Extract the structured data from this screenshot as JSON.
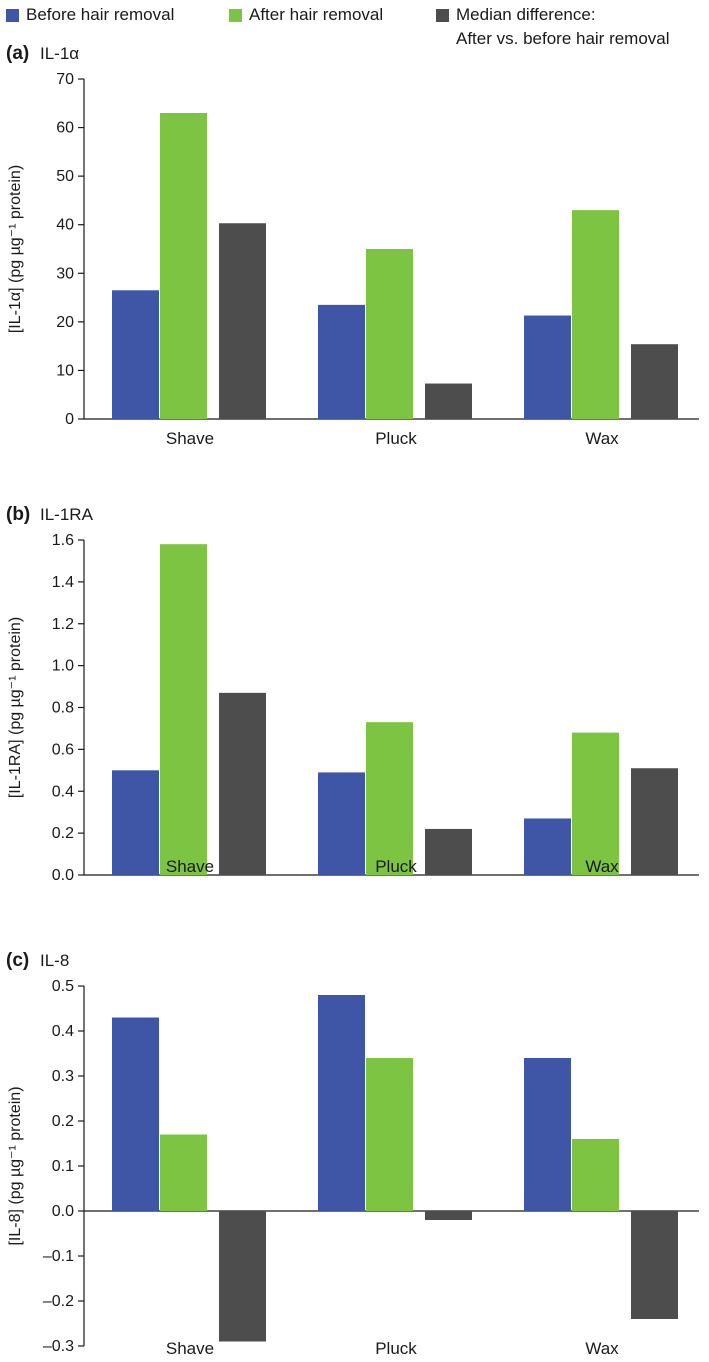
{
  "legend": {
    "items": [
      {
        "name": "before",
        "label": "Before hair removal",
        "color": "#3f55a6"
      },
      {
        "name": "after",
        "label": "After hair removal",
        "color": "#7dc443"
      },
      {
        "name": "median",
        "label_line1": "Median difference:",
        "label_line2": "After vs. before hair removal",
        "color": "#4d4d4d"
      }
    ]
  },
  "chart_data": [
    {
      "type": "bar",
      "panel_letter": "(a)",
      "title": "IL-1α",
      "ylabel": "[IL-1α] (pg µg⁻¹ protein)",
      "ylim": [
        0,
        70
      ],
      "yticks": [
        "0",
        "10",
        "20",
        "30",
        "40",
        "50",
        "60",
        "70"
      ],
      "ytick_values": [
        0,
        10,
        20,
        30,
        40,
        50,
        60,
        70
      ],
      "categories": [
        "Shave",
        "Pluck",
        "Wax"
      ],
      "series": [
        {
          "name": "Before hair removal",
          "color": "#3f55a6",
          "values": [
            26.5,
            23.5,
            21.3
          ]
        },
        {
          "name": "After hair removal",
          "color": "#7dc443",
          "values": [
            63,
            35,
            43
          ]
        },
        {
          "name": "Median difference: After vs. before hair removal",
          "color": "#4d4d4d",
          "values": [
            40.3,
            7.3,
            15.4
          ]
        }
      ]
    },
    {
      "type": "bar",
      "panel_letter": "(b)",
      "title": "IL-1RA",
      "ylabel": "[IL-1RA] (pg µg⁻¹ protein)",
      "ylim": [
        0,
        1.6
      ],
      "yticks": [
        "0.0",
        "0.2",
        "0.4",
        "0.6",
        "0.8",
        "1.0",
        "1.2",
        "1.4",
        "1.6"
      ],
      "ytick_values": [
        0,
        0.2,
        0.4,
        0.6,
        0.8,
        1.0,
        1.2,
        1.4,
        1.6
      ],
      "categories": [
        "Shave",
        "Pluck",
        "Wax"
      ],
      "series": [
        {
          "name": "Before hair removal",
          "color": "#3f55a6",
          "values": [
            0.5,
            0.49,
            0.27
          ]
        },
        {
          "name": "After hair removal",
          "color": "#7dc443",
          "values": [
            1.58,
            0.73,
            0.68
          ]
        },
        {
          "name": "Median difference: After vs. before hair removal",
          "color": "#4d4d4d",
          "values": [
            0.87,
            0.22,
            0.51
          ]
        }
      ]
    },
    {
      "type": "bar",
      "panel_letter": "(c)",
      "title": "IL-8",
      "ylabel": "[IL-8] (pg µg⁻¹ protein)",
      "ylim": [
        -0.3,
        0.5
      ],
      "yticks": [
        "–0.3",
        "–0.2",
        "–0.1",
        "0.0",
        "0.1",
        "0.2",
        "0.3",
        "0.4",
        "0.5"
      ],
      "ytick_values": [
        -0.3,
        -0.2,
        -0.1,
        0,
        0.1,
        0.2,
        0.3,
        0.4,
        0.5
      ],
      "categories": [
        "Shave",
        "Pluck",
        "Wax"
      ],
      "series": [
        {
          "name": "Before hair removal",
          "color": "#3f55a6",
          "values": [
            0.43,
            0.48,
            0.34
          ]
        },
        {
          "name": "After hair removal",
          "color": "#7dc443",
          "values": [
            0.17,
            0.34,
            0.16
          ]
        },
        {
          "name": "Median difference: After vs. before hair removal",
          "color": "#4d4d4d",
          "values": [
            -0.29,
            -0.02,
            -0.24
          ]
        }
      ]
    }
  ]
}
